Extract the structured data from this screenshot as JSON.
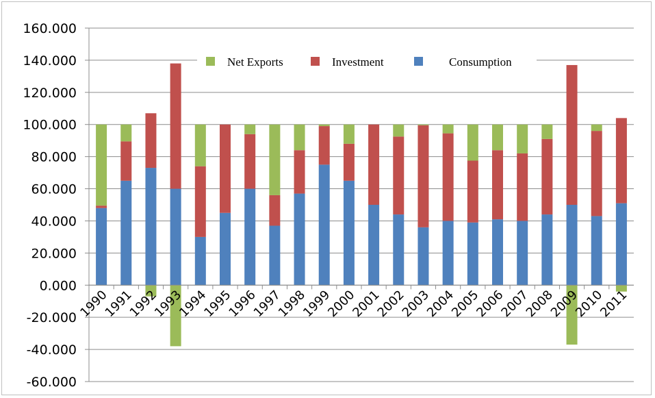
{
  "chart_data": {
    "type": "bar",
    "stacked": true,
    "categories": [
      "1990",
      "1991",
      "1992",
      "1993",
      "1994",
      "1995",
      "1996",
      "1997",
      "1998",
      "1999",
      "2000",
      "2001",
      "2002",
      "2003",
      "2004",
      "2005",
      "2006",
      "2007",
      "2008",
      "2009",
      "2010",
      "2011"
    ],
    "series": [
      {
        "name": "Consumption",
        "color": "#4f81bd",
        "values": [
          48,
          65,
          73,
          60,
          30,
          45,
          60,
          37,
          57,
          75,
          65,
          50,
          44,
          36,
          40,
          39,
          41,
          40,
          44,
          50,
          43,
          51
        ]
      },
      {
        "name": "Investment",
        "color": "#c0504d",
        "values": [
          1.5,
          24.5,
          34,
          78,
          44,
          55,
          34,
          19,
          27,
          24,
          23,
          50,
          48.5,
          63.5,
          54.5,
          38.5,
          43,
          42,
          47,
          87,
          53,
          53
        ]
      },
      {
        "name": "Net Exports",
        "color": "#9bbb59",
        "values": [
          50.5,
          10.5,
          -7,
          -38,
          26,
          0,
          6,
          44,
          16,
          1,
          12,
          0,
          7.5,
          0.5,
          5.5,
          22.5,
          16,
          18,
          9,
          -37,
          4,
          -4
        ]
      }
    ],
    "legend_order": [
      "Net Exports",
      "Investment",
      "Consumption"
    ],
    "legend_position": "top",
    "ylim": [
      -60,
      160
    ],
    "yticks": [
      "160.000",
      "140.000",
      "120.000",
      "100.000",
      "80.000",
      "60.000",
      "40.000",
      "20.000",
      "0.000",
      "-20.000",
      "-40.000",
      "-60.000"
    ],
    "ytick_values": [
      160,
      140,
      120,
      100,
      80,
      60,
      40,
      20,
      0,
      -20,
      -40,
      -60
    ],
    "grid": "horizontal",
    "title": "",
    "xlabel": "",
    "ylabel": ""
  }
}
